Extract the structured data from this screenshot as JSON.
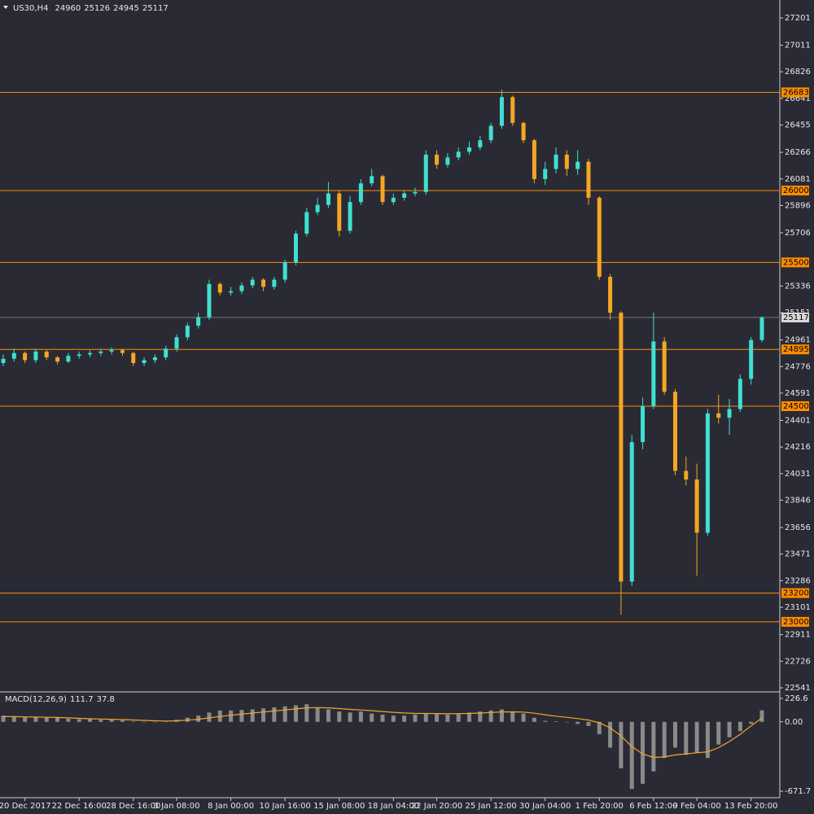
{
  "chart_data": {
    "type": "candlestick",
    "symbol": "US30,H4",
    "open": [
      24800,
      24830,
      24870,
      24820,
      24880,
      24840,
      24810,
      24850,
      24860,
      24870,
      24880,
      24890,
      24870,
      24800,
      24820,
      24840,
      24900,
      24980,
      25060,
      25120,
      25350,
      25290,
      25300,
      25340,
      25380,
      25330,
      25380,
      25500,
      25700,
      25850,
      25900,
      25980,
      25720,
      25920,
      26050,
      26100,
      25920,
      25950,
      25980,
      25990,
      26250,
      26180,
      26230,
      26270,
      26300,
      26350,
      26450,
      26650,
      26470,
      26350,
      26080,
      26150,
      26250,
      26150,
      26200,
      25950,
      25400,
      25150,
      23280,
      24250,
      24500,
      24950,
      24600,
      24050,
      23990,
      23620,
      24450,
      24420,
      24480,
      24690,
      24960
    ],
    "high": [
      24860,
      24900,
      24880,
      24900,
      24890,
      24850,
      24870,
      24880,
      24890,
      24900,
      24910,
      24900,
      24880,
      24840,
      24860,
      24920,
      25000,
      25080,
      25150,
      25380,
      25360,
      25330,
      25360,
      25400,
      25390,
      25400,
      25520,
      25720,
      25880,
      25950,
      26060,
      26000,
      25960,
      26080,
      26150,
      26110,
      25980,
      26000,
      26020,
      26280,
      26280,
      26260,
      26300,
      26340,
      26380,
      26470,
      26700,
      26660,
      26480,
      26360,
      26200,
      26300,
      26280,
      26280,
      26220,
      25960,
      25420,
      25160,
      24300,
      24560,
      25150,
      24980,
      24620,
      24150,
      24100,
      24480,
      24580,
      24550,
      24720,
      24980,
      25126
    ],
    "low": [
      24780,
      24810,
      24800,
      24800,
      24820,
      24790,
      24800,
      24830,
      24840,
      24850,
      24860,
      24850,
      24780,
      24780,
      24800,
      24820,
      24880,
      24960,
      25040,
      25100,
      25270,
      25270,
      25280,
      25320,
      25300,
      25310,
      25360,
      25480,
      25680,
      25830,
      25880,
      25680,
      25700,
      25900,
      26030,
      25900,
      25900,
      25930,
      25960,
      25970,
      26150,
      26160,
      26210,
      26250,
      26280,
      26330,
      26430,
      26450,
      26330,
      26050,
      26040,
      26120,
      26100,
      26110,
      25900,
      25380,
      25100,
      23050,
      23250,
      24200,
      24480,
      24580,
      24020,
      23950,
      23320,
      23600,
      24380,
      24300,
      24460,
      24650,
      24945
    ],
    "close": [
      24830,
      24870,
      24820,
      24880,
      24840,
      24810,
      24850,
      24860,
      24870,
      24880,
      24890,
      24870,
      24800,
      24820,
      24840,
      24900,
      24980,
      25060,
      25120,
      25350,
      25290,
      25300,
      25340,
      25380,
      25330,
      25380,
      25500,
      25700,
      25850,
      25900,
      25980,
      25720,
      25920,
      26050,
      26100,
      25920,
      25950,
      25980,
      25990,
      26250,
      26180,
      26230,
      26270,
      26300,
      26350,
      26450,
      26650,
      26470,
      26350,
      26080,
      26150,
      26250,
      26150,
      26200,
      25950,
      25400,
      25150,
      23280,
      24250,
      24500,
      24950,
      24600,
      24050,
      23990,
      23620,
      24450,
      24420,
      24480,
      24690,
      24960,
      25117
    ],
    "up_color": "#3fe0d0",
    "down_color": "#f5a623",
    "categories": [
      null,
      null,
      "20 Dec 2017",
      null,
      null,
      null,
      null,
      "22 Dec 16:00",
      null,
      null,
      null,
      null,
      "28 Dec 16:00",
      null,
      null,
      null,
      "3 Jan 08:00",
      null,
      null,
      null,
      null,
      "8 Jan 00:00",
      null,
      null,
      null,
      null,
      "10 Jan 16:00",
      null,
      null,
      null,
      null,
      "15 Jan 08:00",
      null,
      null,
      null,
      null,
      "18 Jan 04:00",
      null,
      null,
      null,
      "22 Jan 20:00",
      null,
      null,
      null,
      null,
      "25 Jan 12:00",
      null,
      null,
      null,
      null,
      "30 Jan 04:00",
      null,
      null,
      null,
      null,
      "1 Feb 20:00",
      null,
      null,
      null,
      null,
      "6 Feb 12:00",
      null,
      null,
      null,
      "9 Feb 04:00",
      null,
      null,
      null,
      null,
      "13 Feb 20:00",
      null
    ],
    "ylim": [
      22524,
      27314
    ],
    "yticks": [
      27201,
      27011,
      26826,
      26641,
      26455,
      26266,
      26081,
      25896,
      25706,
      25336,
      25151,
      24961,
      24776,
      24591,
      24401,
      24216,
      24031,
      23846,
      23656,
      23471,
      23286,
      23101,
      22911,
      22726,
      22541
    ],
    "levels": [
      26683,
      26000,
      25500,
      24895,
      24500,
      23200,
      23000
    ],
    "level_color": "#ff8c00",
    "macd": {
      "label": "MACD(12,26,9)",
      "histogram": [
        60,
        55,
        50,
        45,
        45,
        40,
        30,
        25,
        25,
        20,
        20,
        15,
        5,
        0,
        0,
        5,
        20,
        40,
        60,
        90,
        110,
        110,
        115,
        120,
        130,
        140,
        150,
        160,
        170,
        140,
        120,
        100,
        90,
        100,
        80,
        70,
        60,
        60,
        70,
        80,
        75,
        70,
        80,
        90,
        100,
        110,
        120,
        100,
        80,
        40,
        10,
        5,
        0,
        -20,
        -40,
        -120,
        -250,
        -450,
        -650,
        -600,
        -480,
        -350,
        -250,
        -320,
        -300,
        -350,
        -220,
        -150,
        -90,
        -20,
        111.7
      ],
      "signal": [
        50,
        50,
        48,
        46,
        44,
        42,
        38,
        34,
        30,
        27,
        24,
        22,
        18,
        14,
        10,
        8,
        10,
        16,
        25,
        38,
        52,
        64,
        75,
        85,
        95,
        105,
        115,
        125,
        135,
        138,
        135,
        128,
        120,
        115,
        108,
        100,
        92,
        86,
        82,
        81,
        80,
        78,
        79,
        81,
        85,
        90,
        96,
        97,
        94,
        83,
        68,
        55,
        44,
        31,
        17,
        -10,
        -58,
        -136,
        -239,
        -311,
        -345,
        -340,
        -320,
        -310,
        -300,
        -290,
        -250,
        -190,
        -120,
        -40,
        37.8
      ],
      "hist_color": "#8a8a8a",
      "signal_color": "#f5a623",
      "ylim": [
        -719,
        274
      ],
      "yticks": [
        226.6,
        {
          "value": 0,
          "label": "0.00"
        },
        -671.7
      ]
    }
  }
}
